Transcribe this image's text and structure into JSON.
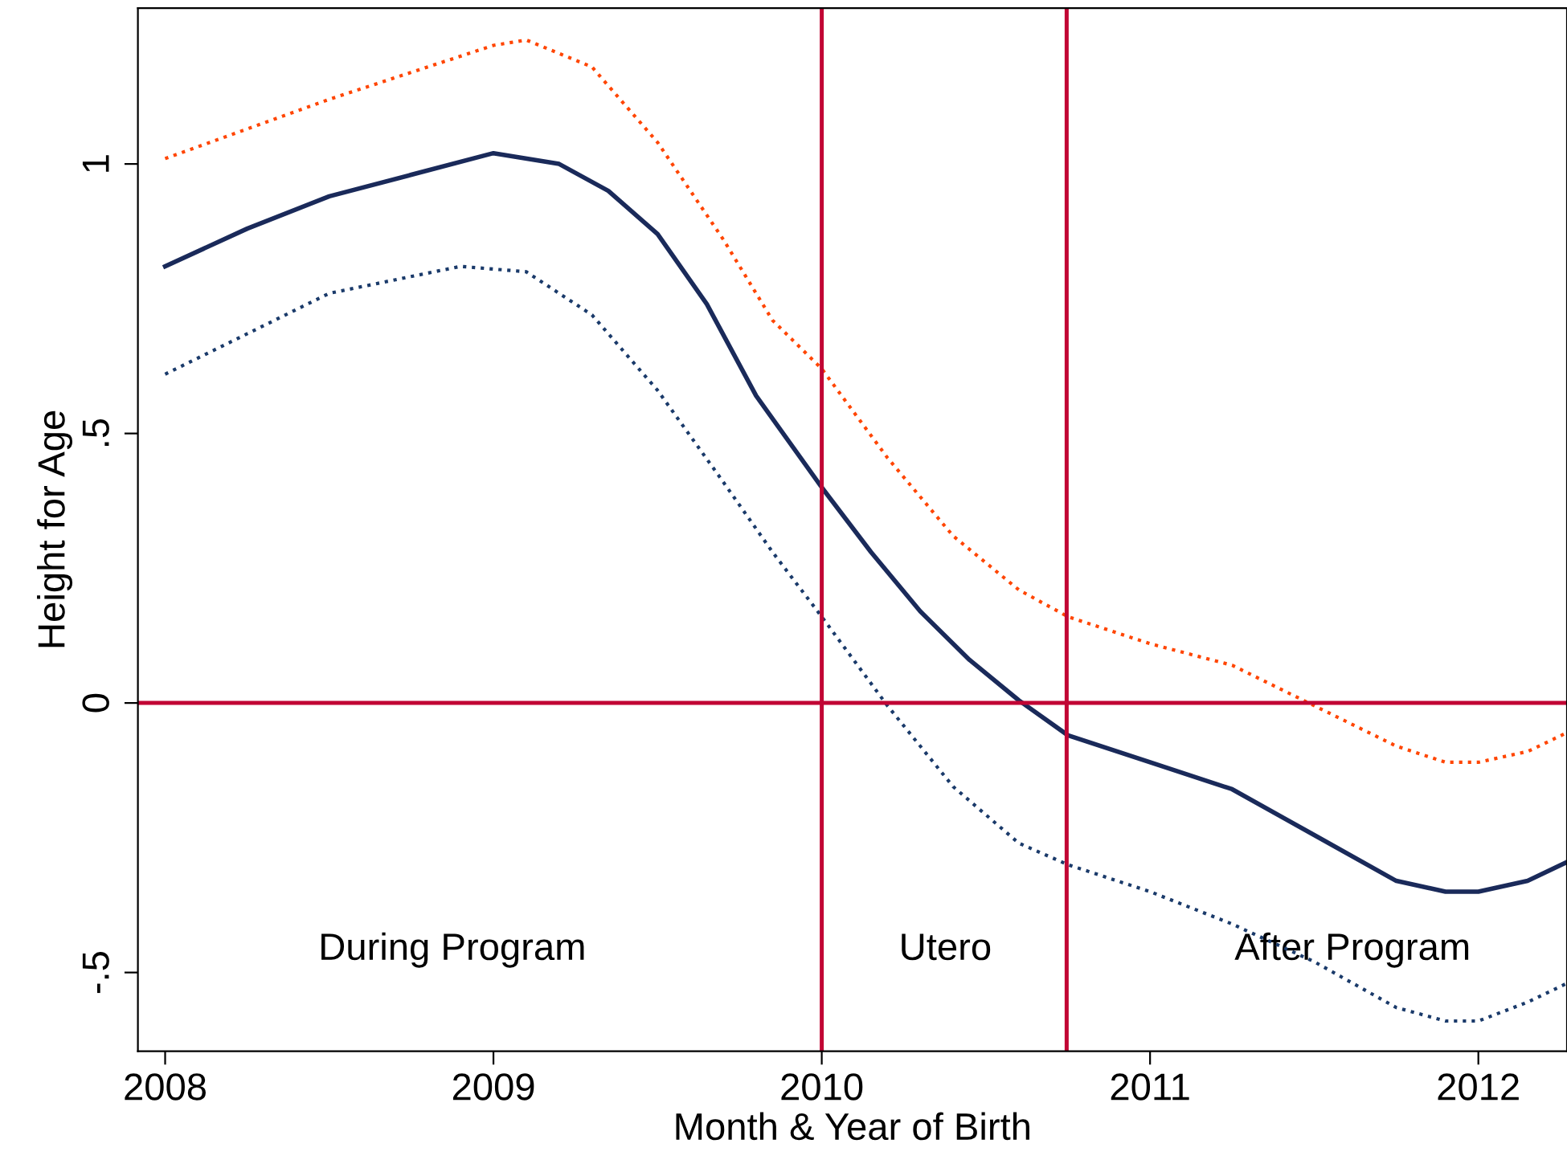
{
  "chart_data": {
    "type": "line",
    "xlabel": "Month & Year of Birth",
    "ylabel": "Height for Age",
    "xlim": [
      2007.917,
      2012.27
    ],
    "ylim": [
      -0.646,
      1.289
    ],
    "xticks": [
      2008,
      2009,
      2010,
      2011,
      2012
    ],
    "yticks": [
      {
        "value": -0.5,
        "label": "-.5"
      },
      {
        "value": 0,
        "label": "0"
      },
      {
        "value": 0.5,
        "label": ".5"
      },
      {
        "value": 1,
        "label": "1"
      }
    ],
    "grid": false,
    "legend": false,
    "marker": "none",
    "series": [
      {
        "color": "#ff4500",
        "line_style": "dotted",
        "x": [
          2008,
          2008.5,
          2009,
          2009.1,
          2009.3,
          2009.5,
          2009.7,
          2009.85,
          2010,
          2010.2,
          2010.4,
          2010.6,
          2010.75,
          2011,
          2011.25,
          2011.5,
          2011.75,
          2011.9,
          2012,
          2012.15,
          2012.27
        ],
        "values": [
          1.01,
          1.12,
          1.22,
          1.23,
          1.18,
          1.04,
          0.86,
          0.71,
          0.62,
          0.455,
          0.31,
          0.21,
          0.16,
          0.11,
          0.07,
          -0.005,
          -0.08,
          -0.11,
          -0.11,
          -0.09,
          -0.055
        ]
      },
      {
        "color": "#1a3a6a",
        "line_style": "dotted",
        "x": [
          2008,
          2008.5,
          2008.9,
          2009.1,
          2009.3,
          2009.5,
          2009.7,
          2009.85,
          2010,
          2010.2,
          2010.4,
          2010.6,
          2010.75,
          2011,
          2011.25,
          2011.5,
          2011.75,
          2011.9,
          2012,
          2012.15,
          2012.27
        ],
        "values": [
          0.61,
          0.76,
          0.81,
          0.8,
          0.72,
          0.58,
          0.41,
          0.28,
          0.16,
          -0.005,
          -0.155,
          -0.26,
          -0.3,
          -0.35,
          -0.41,
          -0.48,
          -0.565,
          -0.59,
          -0.59,
          -0.555,
          -0.52
        ]
      },
      {
        "color": "#1a2a5a",
        "line_style": "solid",
        "x": [
          2008,
          2008.25,
          2008.5,
          2008.75,
          2009,
          2009.2,
          2009.35,
          2009.5,
          2009.65,
          2009.8,
          2010,
          2010.15,
          2010.3,
          2010.45,
          2010.6,
          2010.75,
          2011,
          2011.25,
          2011.5,
          2011.75,
          2011.9,
          2012,
          2012.15,
          2012.27
        ],
        "values": [
          0.81,
          0.88,
          0.94,
          0.98,
          1.02,
          1.0,
          0.95,
          0.87,
          0.74,
          0.57,
          0.4,
          0.28,
          0.17,
          0.08,
          0.005,
          -0.06,
          -0.11,
          -0.16,
          -0.245,
          -0.33,
          -0.35,
          -0.35,
          -0.33,
          -0.295
        ]
      }
    ],
    "ref_lines": [
      {
        "axis": "x",
        "value": 2010,
        "color": "#c10534"
      },
      {
        "axis": "x",
        "value": 2010.746,
        "color": "#c10534"
      },
      {
        "axis": "y",
        "value": 0,
        "color": "#c10534"
      }
    ],
    "annotations": [
      "During Program",
      "Utero",
      "After Program"
    ]
  }
}
